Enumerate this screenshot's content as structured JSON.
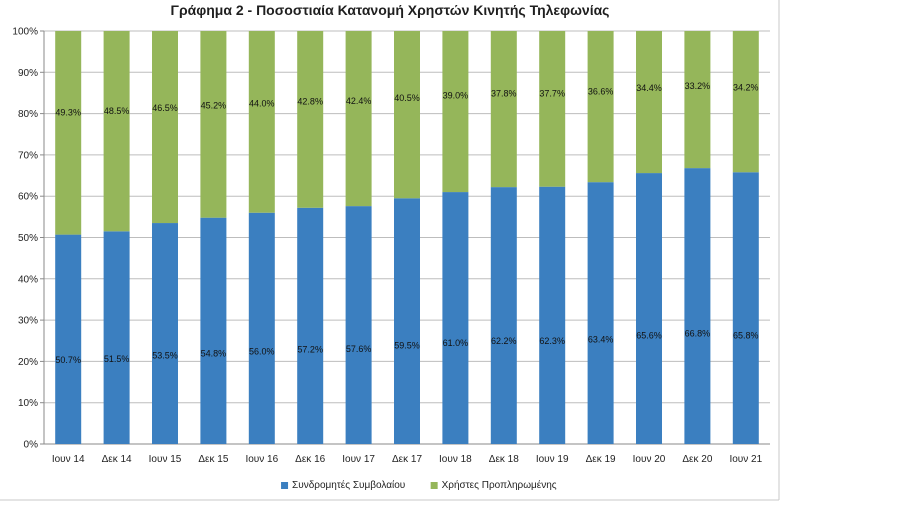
{
  "chart_data": {
    "type": "bar",
    "stacked": true,
    "title": "Γράφημα 2 - Ποσοστιαία Κατανομή Χρηστών Κινητής Τηλεφωνίας",
    "categories": [
      "Ιουν 14",
      "Δεκ 14",
      "Ιουν 15",
      "Δεκ 15",
      "Ιουν 16",
      "Δεκ 16",
      "Ιουν 17",
      "Δεκ 17",
      "Ιουν 18",
      "Δεκ 18",
      "Ιουν 19",
      "Δεκ 19",
      "Ιουν 20",
      "Δεκ 20",
      "Ιουν 21"
    ],
    "series": [
      {
        "name": "Συνδρομητές Συμβολαίου",
        "color": "#3b7fc0",
        "values": [
          50.7,
          51.5,
          53.5,
          54.8,
          56.0,
          57.2,
          57.6,
          59.5,
          61.0,
          62.2,
          62.3,
          63.4,
          65.6,
          66.8,
          65.8
        ],
        "labels": [
          "50.7%",
          "51.5%",
          "53.5%",
          "54.8%",
          "56.0%",
          "57.2%",
          "57.6%",
          "59.5%",
          "61.0%",
          "62.2%",
          "62.3%",
          "63.4%",
          "65.6%",
          "66.8%",
          "65.8%"
        ]
      },
      {
        "name": "Χρήστες Προπληρωμένης",
        "color": "#95b65a",
        "values": [
          49.3,
          48.5,
          46.5,
          45.2,
          44.0,
          42.8,
          42.4,
          40.5,
          39.0,
          37.8,
          37.7,
          36.6,
          34.4,
          33.2,
          34.2
        ],
        "labels": [
          "49.3%",
          "48.5%",
          "46.5%",
          "45.2%",
          "44.0%",
          "42.8%",
          "42.4%",
          "40.5%",
          "39.0%",
          "37.8%",
          "37.7%",
          "36.6%",
          "34.4%",
          "33.2%",
          "34.2%"
        ]
      }
    ],
    "ylim": [
      0,
      100
    ],
    "yticks": [
      "0%",
      "10%",
      "20%",
      "30%",
      "40%",
      "50%",
      "60%",
      "70%",
      "80%",
      "90%",
      "100%"
    ],
    "grid": true,
    "legend_position": "bottom"
  }
}
